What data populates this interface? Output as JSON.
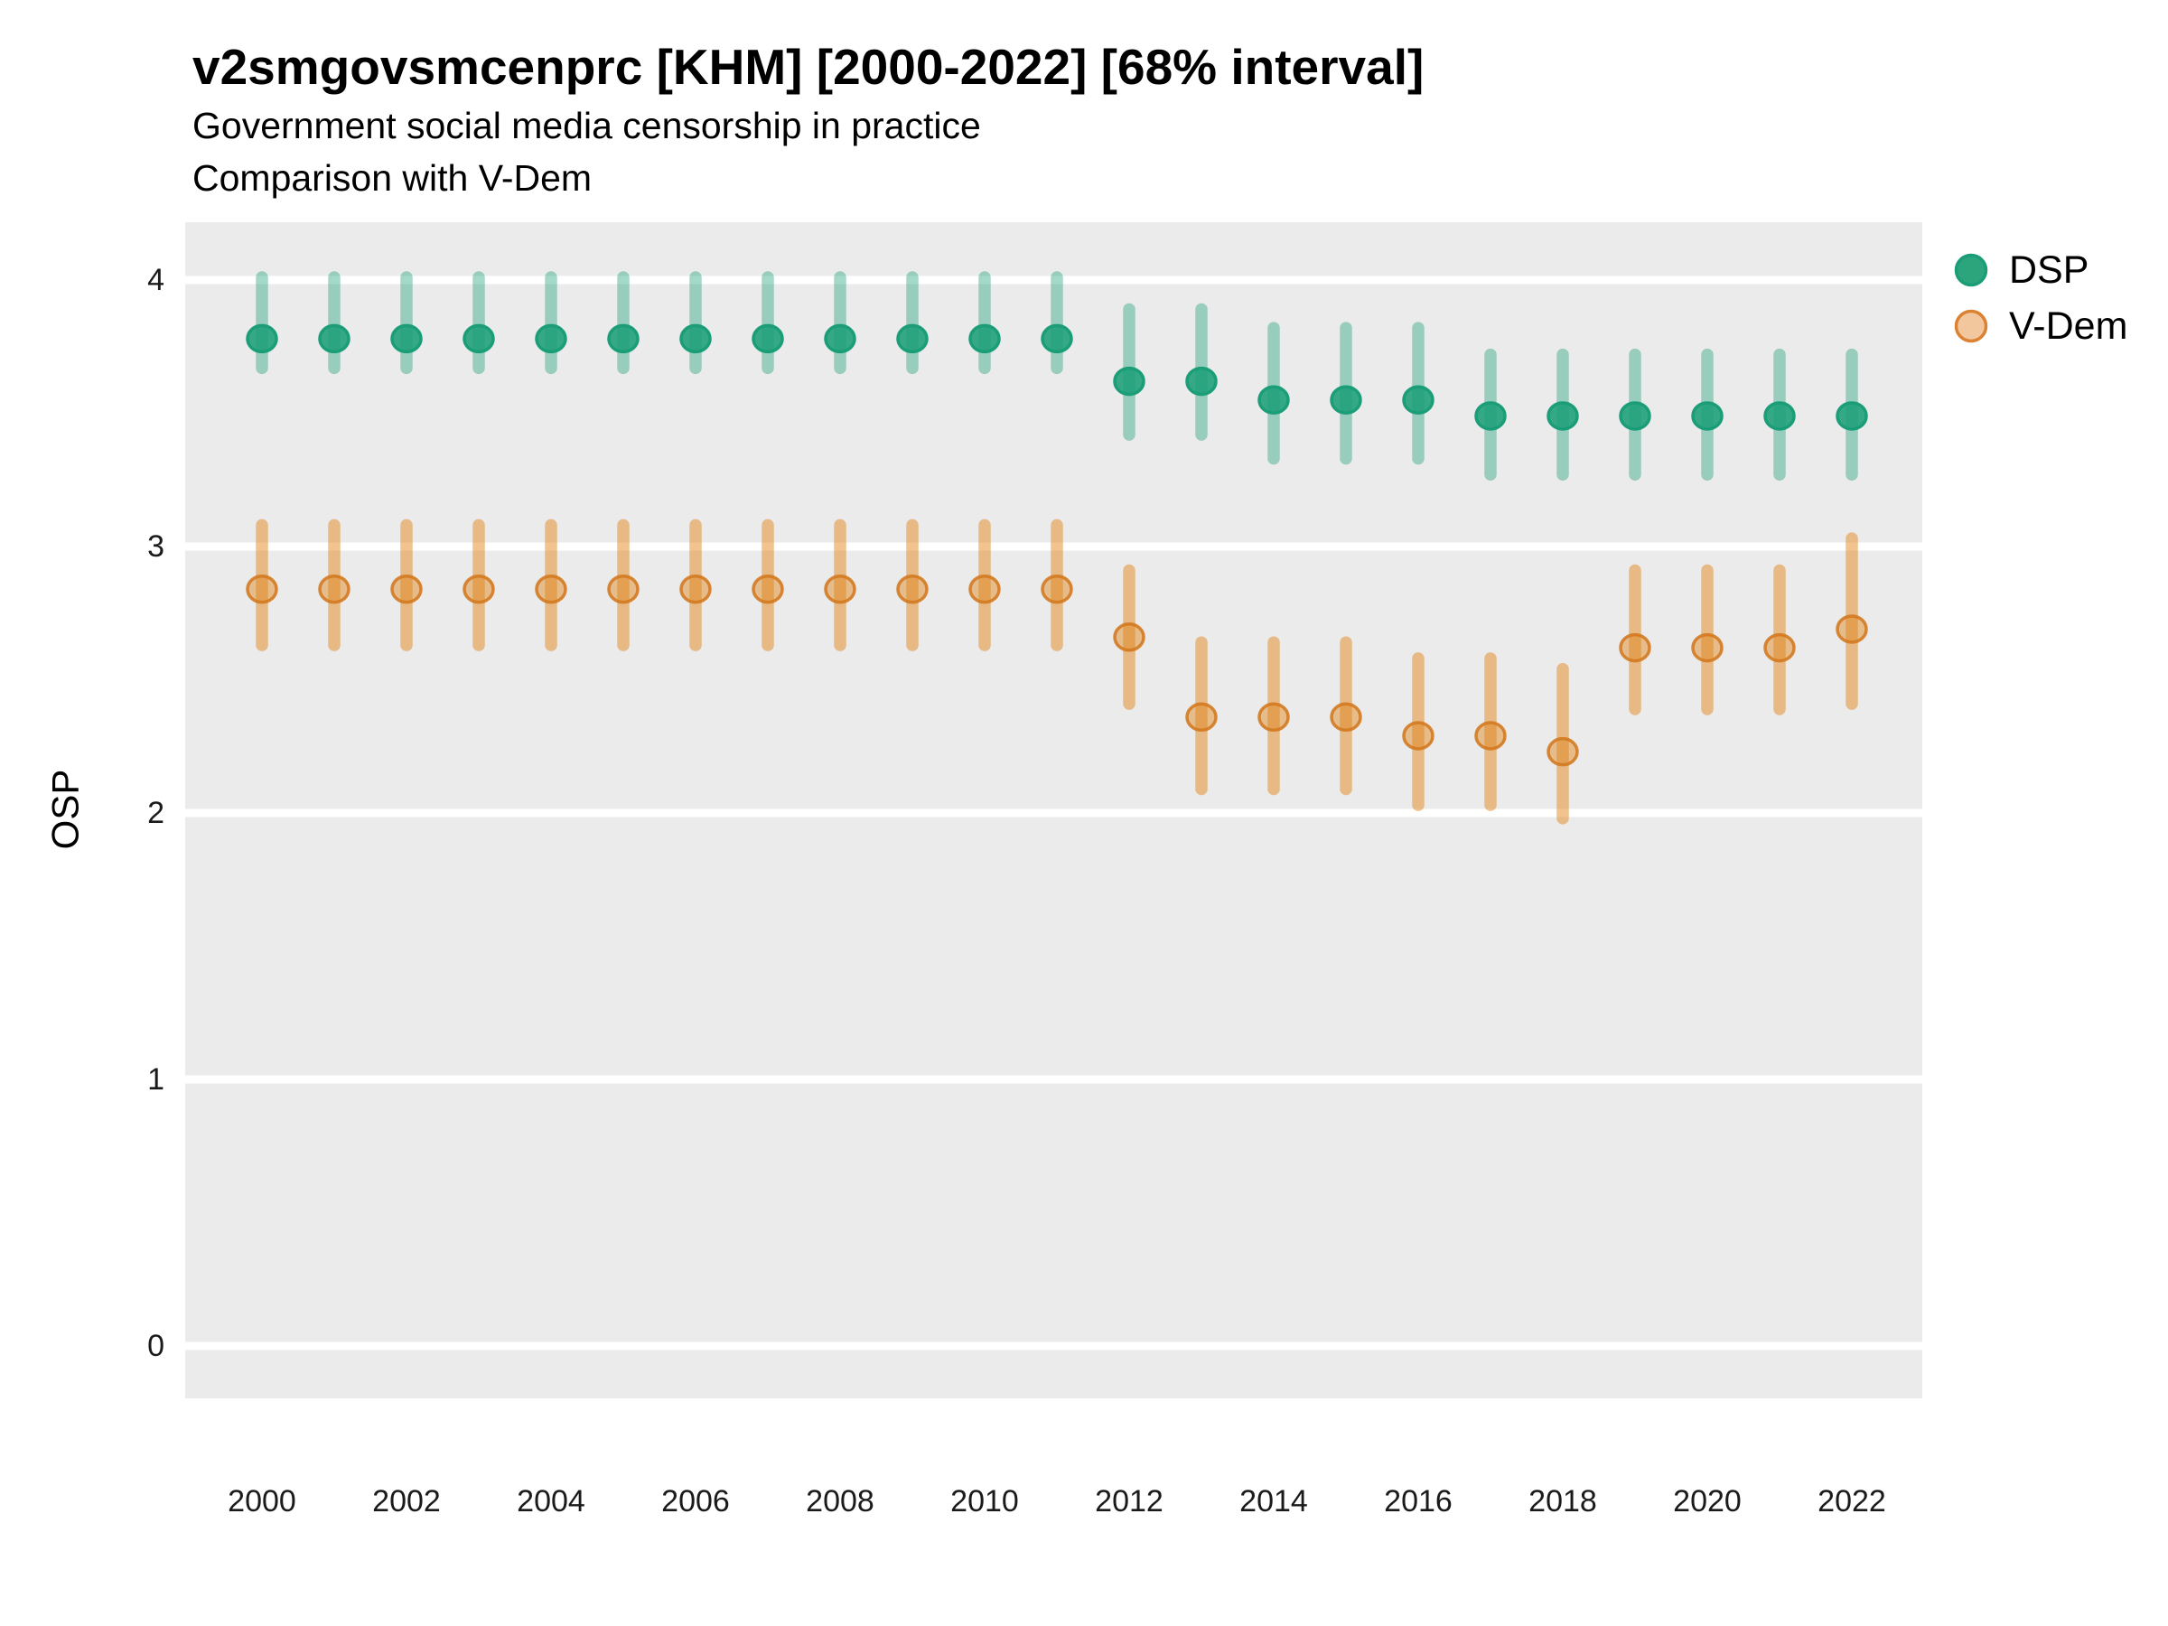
{
  "header": {
    "title": "v2smgovsmcenprc [KHM] [2000-2022] [68% interval]",
    "subtitle1": "Government social media censorship in practice",
    "subtitle2": "Comparison with V-Dem"
  },
  "colors": {
    "panel_background": "#EBEBEB",
    "gridline": "#FFFFFF",
    "dsp_base": "#1B9E77",
    "vdem_base": "#E08214"
  },
  "chart_data": {
    "type": "scatter",
    "subtype": "pointrange",
    "title": "v2smgovsmcenprc [KHM] [2000-2022] [68% interval]",
    "xlabel": "",
    "ylabel": "OSP",
    "ylim": [
      0,
      4
    ],
    "yticks": [
      0,
      1,
      2,
      3,
      4
    ],
    "xticks": [
      2000,
      2002,
      2004,
      2006,
      2008,
      2010,
      2012,
      2014,
      2016,
      2018,
      2020,
      2022
    ],
    "grid": "major-horizontal-white",
    "legend_position": "right",
    "interval_note": "68% interval",
    "x": [
      2000,
      2001,
      2002,
      2003,
      2004,
      2005,
      2006,
      2007,
      2008,
      2009,
      2010,
      2011,
      2012,
      2013,
      2014,
      2015,
      2016,
      2017,
      2018,
      2019,
      2020,
      2021,
      2022
    ],
    "series": [
      {
        "name": "DSP",
        "point_fill": "rgba(27,158,119,0.88)",
        "point_stroke": "#1B9E77",
        "line_color": "rgba(27,158,119,0.40)",
        "values": [
          3.78,
          3.78,
          3.78,
          3.78,
          3.78,
          3.78,
          3.78,
          3.78,
          3.78,
          3.78,
          3.78,
          3.78,
          3.62,
          3.62,
          3.55,
          3.55,
          3.55,
          3.49,
          3.49,
          3.49,
          3.49,
          3.49,
          3.49
        ],
        "lo": [
          3.67,
          3.67,
          3.67,
          3.67,
          3.67,
          3.67,
          3.67,
          3.67,
          3.67,
          3.67,
          3.67,
          3.67,
          3.42,
          3.42,
          3.33,
          3.33,
          3.33,
          3.27,
          3.27,
          3.27,
          3.27,
          3.27,
          3.27
        ],
        "hi": [
          4.01,
          4.01,
          4.01,
          4.01,
          4.01,
          4.01,
          4.01,
          4.01,
          4.01,
          4.01,
          4.01,
          4.01,
          3.89,
          3.89,
          3.82,
          3.82,
          3.82,
          3.72,
          3.72,
          3.72,
          3.72,
          3.72,
          3.72
        ]
      },
      {
        "name": "V-Dem",
        "point_fill": "rgba(224,130,20,0.45)",
        "point_stroke": "rgba(211,120,30,0.88)",
        "line_color": "rgba(224,130,20,0.48)",
        "values": [
          2.84,
          2.84,
          2.84,
          2.84,
          2.84,
          2.84,
          2.84,
          2.84,
          2.84,
          2.84,
          2.84,
          2.84,
          2.66,
          2.36,
          2.36,
          2.36,
          2.29,
          2.29,
          2.23,
          2.62,
          2.62,
          2.62,
          2.69
        ],
        "lo": [
          2.63,
          2.63,
          2.63,
          2.63,
          2.63,
          2.63,
          2.63,
          2.63,
          2.63,
          2.63,
          2.63,
          2.63,
          2.41,
          2.09,
          2.09,
          2.09,
          2.03,
          2.03,
          1.98,
          2.39,
          2.39,
          2.39,
          2.41
        ],
        "hi": [
          3.08,
          3.08,
          3.08,
          3.08,
          3.08,
          3.08,
          3.08,
          3.08,
          3.08,
          3.08,
          3.08,
          3.08,
          2.91,
          2.64,
          2.64,
          2.64,
          2.58,
          2.58,
          2.54,
          2.91,
          2.91,
          2.91,
          3.03
        ]
      }
    ]
  },
  "legend": {
    "items": [
      {
        "label": "DSP",
        "fill": "#2CA47C",
        "stroke": "#1B9E77"
      },
      {
        "label": "V-Dem",
        "fill": "#F2C79E",
        "stroke": "#DB8233"
      }
    ]
  }
}
